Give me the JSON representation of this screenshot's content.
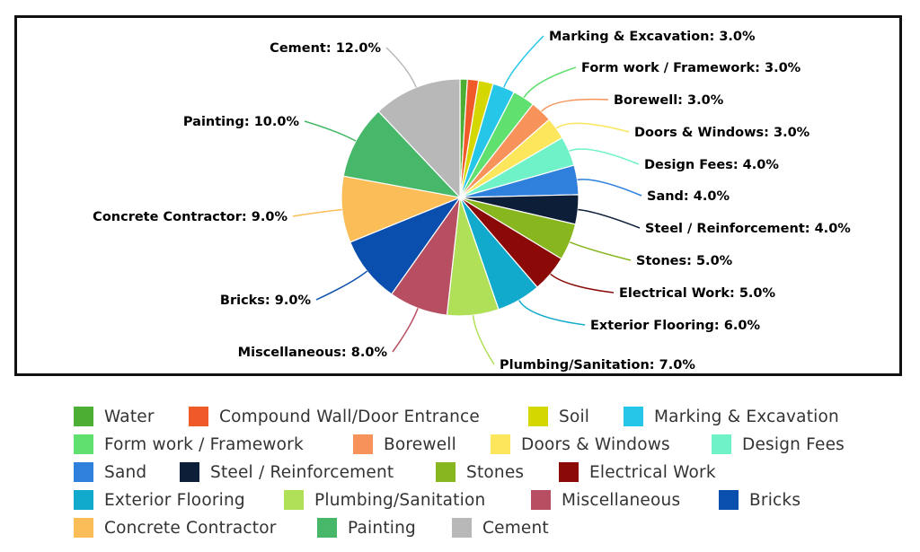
{
  "chart_data": {
    "type": "pie",
    "title": "",
    "unit": "%",
    "slices": [
      {
        "label": "Water",
        "value": 1.0,
        "color": "#4caf34",
        "label_text": ""
      },
      {
        "label": "Compound Wall/Door Entrance",
        "value": 1.5,
        "color": "#ef5a28",
        "label_text": ""
      },
      {
        "label": "Soil",
        "value": 2.0,
        "color": "#d4d700",
        "label_text": ""
      },
      {
        "label": "Marking & Excavation",
        "value": 3.0,
        "color": "#26c6e8",
        "label_text": "Marking & Excavation: 3.0%"
      },
      {
        "label": "Form work / Framework",
        "value": 3.0,
        "color": "#5fe06f",
        "label_text": "Form work / Framework: 3.0%"
      },
      {
        "label": "Borewell",
        "value": 3.0,
        "color": "#f7935a",
        "label_text": "Borewell: 3.0%"
      },
      {
        "label": "Doors & Windows",
        "value": 3.0,
        "color": "#fbe65c",
        "label_text": "Doors & Windows: 3.0%"
      },
      {
        "label": "Design Fees",
        "value": 4.0,
        "color": "#6ff2c8",
        "label_text": "Design Fees: 4.0%"
      },
      {
        "label": "Sand",
        "value": 4.0,
        "color": "#2f7fdd",
        "label_text": "Sand: 4.0%"
      },
      {
        "label": "Steel / Reinforcement",
        "value": 4.0,
        "color": "#0d1f38",
        "label_text": "Steel / Reinforcement: 4.0%"
      },
      {
        "label": "Stones",
        "value": 5.0,
        "color": "#88b61e",
        "label_text": "Stones: 5.0%"
      },
      {
        "label": "Electrical Work",
        "value": 5.0,
        "color": "#8b0a08",
        "label_text": "Electrical Work: 5.0%"
      },
      {
        "label": "Exterior Flooring",
        "value": 6.0,
        "color": "#12aacc",
        "label_text": "Exterior Flooring: 6.0%"
      },
      {
        "label": "Plumbing/Sanitation",
        "value": 7.0,
        "color": "#b0e058",
        "label_text": "Plumbing/Sanitation: 7.0%"
      },
      {
        "label": "Miscellaneous",
        "value": 8.0,
        "color": "#b84e62",
        "label_text": "Miscellaneous: 8.0%"
      },
      {
        "label": "Bricks",
        "value": 9.0,
        "color": "#0a4fae",
        "label_text": "Bricks: 9.0%"
      },
      {
        "label": "Concrete Contractor",
        "value": 9.0,
        "color": "#fbbd57",
        "label_text": "Concrete Contractor: 9.0%"
      },
      {
        "label": "Painting",
        "value": 10.0,
        "color": "#47b86a",
        "label_text": "Painting: 10.0%"
      },
      {
        "label": "Cement",
        "value": 12.0,
        "color": "#b8b8b8",
        "label_text": "Cement: 12.0%"
      }
    ],
    "legend_placement": "bottom"
  }
}
